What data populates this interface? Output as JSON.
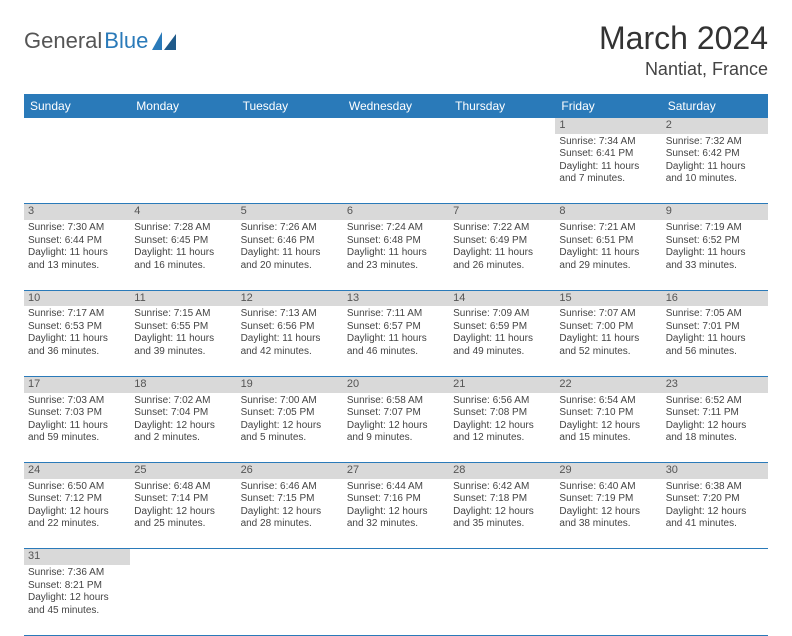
{
  "logo": {
    "text1": "General",
    "text2": "Blue"
  },
  "title": "March 2024",
  "location": "Nantiat, France",
  "colors": {
    "header_bg": "#2a7ab9",
    "daynum_bg": "#d9d9d9",
    "border": "#2a7ab9"
  },
  "weekdays": [
    "Sunday",
    "Monday",
    "Tuesday",
    "Wednesday",
    "Thursday",
    "Friday",
    "Saturday"
  ],
  "weeks": [
    [
      null,
      null,
      null,
      null,
      null,
      {
        "n": "1",
        "sr": "Sunrise: 7:34 AM",
        "ss": "Sunset: 6:41 PM",
        "d1": "Daylight: 11 hours",
        "d2": "and 7 minutes."
      },
      {
        "n": "2",
        "sr": "Sunrise: 7:32 AM",
        "ss": "Sunset: 6:42 PM",
        "d1": "Daylight: 11 hours",
        "d2": "and 10 minutes."
      }
    ],
    [
      {
        "n": "3",
        "sr": "Sunrise: 7:30 AM",
        "ss": "Sunset: 6:44 PM",
        "d1": "Daylight: 11 hours",
        "d2": "and 13 minutes."
      },
      {
        "n": "4",
        "sr": "Sunrise: 7:28 AM",
        "ss": "Sunset: 6:45 PM",
        "d1": "Daylight: 11 hours",
        "d2": "and 16 minutes."
      },
      {
        "n": "5",
        "sr": "Sunrise: 7:26 AM",
        "ss": "Sunset: 6:46 PM",
        "d1": "Daylight: 11 hours",
        "d2": "and 20 minutes."
      },
      {
        "n": "6",
        "sr": "Sunrise: 7:24 AM",
        "ss": "Sunset: 6:48 PM",
        "d1": "Daylight: 11 hours",
        "d2": "and 23 minutes."
      },
      {
        "n": "7",
        "sr": "Sunrise: 7:22 AM",
        "ss": "Sunset: 6:49 PM",
        "d1": "Daylight: 11 hours",
        "d2": "and 26 minutes."
      },
      {
        "n": "8",
        "sr": "Sunrise: 7:21 AM",
        "ss": "Sunset: 6:51 PM",
        "d1": "Daylight: 11 hours",
        "d2": "and 29 minutes."
      },
      {
        "n": "9",
        "sr": "Sunrise: 7:19 AM",
        "ss": "Sunset: 6:52 PM",
        "d1": "Daylight: 11 hours",
        "d2": "and 33 minutes."
      }
    ],
    [
      {
        "n": "10",
        "sr": "Sunrise: 7:17 AM",
        "ss": "Sunset: 6:53 PM",
        "d1": "Daylight: 11 hours",
        "d2": "and 36 minutes."
      },
      {
        "n": "11",
        "sr": "Sunrise: 7:15 AM",
        "ss": "Sunset: 6:55 PM",
        "d1": "Daylight: 11 hours",
        "d2": "and 39 minutes."
      },
      {
        "n": "12",
        "sr": "Sunrise: 7:13 AM",
        "ss": "Sunset: 6:56 PM",
        "d1": "Daylight: 11 hours",
        "d2": "and 42 minutes."
      },
      {
        "n": "13",
        "sr": "Sunrise: 7:11 AM",
        "ss": "Sunset: 6:57 PM",
        "d1": "Daylight: 11 hours",
        "d2": "and 46 minutes."
      },
      {
        "n": "14",
        "sr": "Sunrise: 7:09 AM",
        "ss": "Sunset: 6:59 PM",
        "d1": "Daylight: 11 hours",
        "d2": "and 49 minutes."
      },
      {
        "n": "15",
        "sr": "Sunrise: 7:07 AM",
        "ss": "Sunset: 7:00 PM",
        "d1": "Daylight: 11 hours",
        "d2": "and 52 minutes."
      },
      {
        "n": "16",
        "sr": "Sunrise: 7:05 AM",
        "ss": "Sunset: 7:01 PM",
        "d1": "Daylight: 11 hours",
        "d2": "and 56 minutes."
      }
    ],
    [
      {
        "n": "17",
        "sr": "Sunrise: 7:03 AM",
        "ss": "Sunset: 7:03 PM",
        "d1": "Daylight: 11 hours",
        "d2": "and 59 minutes."
      },
      {
        "n": "18",
        "sr": "Sunrise: 7:02 AM",
        "ss": "Sunset: 7:04 PM",
        "d1": "Daylight: 12 hours",
        "d2": "and 2 minutes."
      },
      {
        "n": "19",
        "sr": "Sunrise: 7:00 AM",
        "ss": "Sunset: 7:05 PM",
        "d1": "Daylight: 12 hours",
        "d2": "and 5 minutes."
      },
      {
        "n": "20",
        "sr": "Sunrise: 6:58 AM",
        "ss": "Sunset: 7:07 PM",
        "d1": "Daylight: 12 hours",
        "d2": "and 9 minutes."
      },
      {
        "n": "21",
        "sr": "Sunrise: 6:56 AM",
        "ss": "Sunset: 7:08 PM",
        "d1": "Daylight: 12 hours",
        "d2": "and 12 minutes."
      },
      {
        "n": "22",
        "sr": "Sunrise: 6:54 AM",
        "ss": "Sunset: 7:10 PM",
        "d1": "Daylight: 12 hours",
        "d2": "and 15 minutes."
      },
      {
        "n": "23",
        "sr": "Sunrise: 6:52 AM",
        "ss": "Sunset: 7:11 PM",
        "d1": "Daylight: 12 hours",
        "d2": "and 18 minutes."
      }
    ],
    [
      {
        "n": "24",
        "sr": "Sunrise: 6:50 AM",
        "ss": "Sunset: 7:12 PM",
        "d1": "Daylight: 12 hours",
        "d2": "and 22 minutes."
      },
      {
        "n": "25",
        "sr": "Sunrise: 6:48 AM",
        "ss": "Sunset: 7:14 PM",
        "d1": "Daylight: 12 hours",
        "d2": "and 25 minutes."
      },
      {
        "n": "26",
        "sr": "Sunrise: 6:46 AM",
        "ss": "Sunset: 7:15 PM",
        "d1": "Daylight: 12 hours",
        "d2": "and 28 minutes."
      },
      {
        "n": "27",
        "sr": "Sunrise: 6:44 AM",
        "ss": "Sunset: 7:16 PM",
        "d1": "Daylight: 12 hours",
        "d2": "and 32 minutes."
      },
      {
        "n": "28",
        "sr": "Sunrise: 6:42 AM",
        "ss": "Sunset: 7:18 PM",
        "d1": "Daylight: 12 hours",
        "d2": "and 35 minutes."
      },
      {
        "n": "29",
        "sr": "Sunrise: 6:40 AM",
        "ss": "Sunset: 7:19 PM",
        "d1": "Daylight: 12 hours",
        "d2": "and 38 minutes."
      },
      {
        "n": "30",
        "sr": "Sunrise: 6:38 AM",
        "ss": "Sunset: 7:20 PM",
        "d1": "Daylight: 12 hours",
        "d2": "and 41 minutes."
      }
    ],
    [
      {
        "n": "31",
        "sr": "Sunrise: 7:36 AM",
        "ss": "Sunset: 8:21 PM",
        "d1": "Daylight: 12 hours",
        "d2": "and 45 minutes."
      },
      null,
      null,
      null,
      null,
      null,
      null
    ]
  ]
}
